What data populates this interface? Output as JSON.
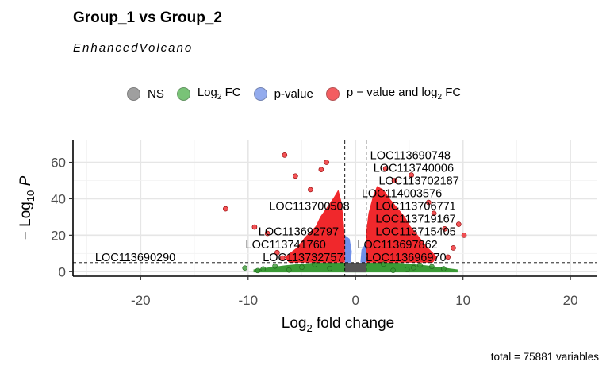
{
  "header": {
    "title": "Group_1 vs Group_2",
    "subtitle": "EnhancedVolcano"
  },
  "legend": [
    {
      "key": "ns",
      "label": "NS",
      "color": "#808080"
    },
    {
      "key": "fc",
      "label_main": "Log",
      "label_sub": "2",
      "label_tail": " FC",
      "color": "#4daf4a"
    },
    {
      "key": "p",
      "label": "p-value",
      "color": "#6f8fe8"
    },
    {
      "key": "pfc",
      "label_main": "p − value and log",
      "label_sub": "2",
      "label_tail": " FC",
      "color": "#f0282c"
    }
  ],
  "caption": "total = 75881 variables",
  "chart_data": {
    "type": "scatter",
    "title": "Group_1 vs Group_2",
    "subtitle": "EnhancedVolcano",
    "xlabel_main": "Log",
    "xlabel_sub": "2",
    "xlabel_tail": " fold change",
    "ylabel_main": "− Log",
    "ylabel_sub": "10",
    "ylabel_tail": " P",
    "xlim": [
      -26.3,
      22.5
    ],
    "ylim": [
      -2.5,
      72
    ],
    "x_ticks": [
      -20,
      -10,
      0,
      10,
      20
    ],
    "y_ticks": [
      0,
      20,
      40,
      60
    ],
    "x_tick_labels": [
      "-20",
      "-10",
      "0",
      "10",
      "20"
    ],
    "y_tick_labels": [
      "0",
      "20",
      "40",
      "60"
    ],
    "fc_cutoff": 1,
    "p_cutoff_neglog10": 5,
    "grid": true,
    "legend_position": "top",
    "colors": {
      "ns": "#808080",
      "fc": "#3a9a35",
      "p": "#6f8fe8",
      "pfc": "#f0282c"
    },
    "sig_points": [
      {
        "x": -6.6,
        "y": 64
      },
      {
        "x": -2.7,
        "y": 60
      },
      {
        "x": -3.2,
        "y": 56
      },
      {
        "x": -5.6,
        "y": 52.5
      },
      {
        "x": -12.1,
        "y": 34.5
      },
      {
        "x": -9.4,
        "y": 24.5
      },
      {
        "x": -7.3,
        "y": 10.5
      },
      {
        "x": -6.8,
        "y": 7.5
      },
      {
        "x": -8.2,
        "y": 21
      },
      {
        "x": 2.8,
        "y": 56.5
      },
      {
        "x": 5.2,
        "y": 53
      },
      {
        "x": 3.6,
        "y": 50
      },
      {
        "x": 7.3,
        "y": 32
      },
      {
        "x": 8.3,
        "y": 23.5
      },
      {
        "x": 9.6,
        "y": 26
      },
      {
        "x": 10.1,
        "y": 20
      },
      {
        "x": 9.1,
        "y": 13
      },
      {
        "x": 8.6,
        "y": 8
      },
      {
        "x": 6.8,
        "y": 38
      },
      {
        "x": -4.2,
        "y": 45
      }
    ],
    "fc_points": [
      {
        "x": -8.6,
        "y": 1.5
      },
      {
        "x": -10.3,
        "y": 2.0
      },
      {
        "x": 8.2,
        "y": 1.6
      },
      {
        "x": -7.5,
        "y": 3.1
      },
      {
        "x": 7.1,
        "y": 2.8
      },
      {
        "x": -6.2,
        "y": 0.9
      },
      {
        "x": 6.0,
        "y": 3.6
      },
      {
        "x": -5.0,
        "y": 2.4
      },
      {
        "x": 4.8,
        "y": 1.2
      },
      {
        "x": -3.8,
        "y": 3.9
      },
      {
        "x": 3.5,
        "y": 0.7
      },
      {
        "x": -2.4,
        "y": 1.8
      },
      {
        "x": 2.6,
        "y": 4.1
      },
      {
        "x": 5.4,
        "y": 2.2
      },
      {
        "x": -9.1,
        "y": 0.6
      }
    ],
    "labels": [
      {
        "text": "LOC113690748",
        "x": 5.1,
        "y": 63.5
      },
      {
        "text": "LOC113740006",
        "x": 5.4,
        "y": 56.5
      },
      {
        "text": "LOC113702187",
        "x": 5.9,
        "y": 49.5
      },
      {
        "text": "LOC114003576",
        "x": 4.3,
        "y": 42.5
      },
      {
        "text": "LOC113700508",
        "x": -4.3,
        "y": 35.5
      },
      {
        "text": "LOC113706771",
        "x": 5.6,
        "y": 35.5
      },
      {
        "text": "LOC113719167",
        "x": 5.6,
        "y": 28.5
      },
      {
        "text": "LOC113692797",
        "x": -5.3,
        "y": 21.5
      },
      {
        "text": "LOC113715405",
        "x": 5.6,
        "y": 21.5
      },
      {
        "text": "LOC113741760",
        "x": -6.5,
        "y": 14.5
      },
      {
        "text": "LOC113697862",
        "x": 3.9,
        "y": 14.5
      },
      {
        "text": "LOC113690290",
        "x": -20.5,
        "y": 7.5
      },
      {
        "text": "LOC113732757",
        "x": -4.9,
        "y": 7.5
      },
      {
        "text": "LOC113696970",
        "x": 4.7,
        "y": 7.5
      }
    ]
  }
}
